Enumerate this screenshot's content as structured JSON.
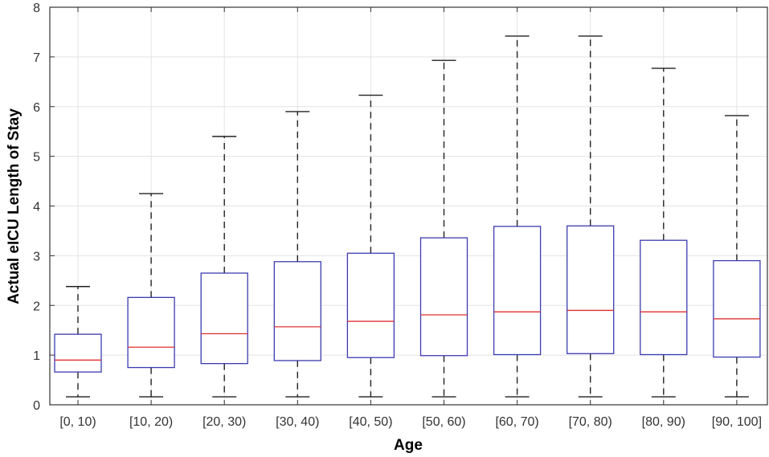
{
  "chart_data": {
    "type": "box",
    "title": "",
    "xlabel": "Age",
    "ylabel": "Actual eICU Length of Stay",
    "ylim": [
      0,
      8
    ],
    "yticks": [
      0,
      1,
      2,
      3,
      4,
      5,
      6,
      7,
      8
    ],
    "grid": true,
    "categories": [
      "[0, 10)",
      "[10, 20)",
      "[20, 30)",
      "[30, 40)",
      "[40, 50)",
      "[50, 60)",
      "[60, 70)",
      "[70, 80)",
      "[80, 90)",
      "[90, 100]"
    ],
    "boxes": [
      {
        "whisker_low": 0.16,
        "q1": 0.66,
        "median": 0.9,
        "q3": 1.42,
        "whisker_high": 2.38
      },
      {
        "whisker_low": 0.16,
        "q1": 0.75,
        "median": 1.16,
        "q3": 2.16,
        "whisker_high": 4.25
      },
      {
        "whisker_low": 0.16,
        "q1": 0.83,
        "median": 1.43,
        "q3": 2.65,
        "whisker_high": 5.4
      },
      {
        "whisker_low": 0.16,
        "q1": 0.89,
        "median": 1.57,
        "q3": 2.88,
        "whisker_high": 5.9
      },
      {
        "whisker_low": 0.16,
        "q1": 0.95,
        "median": 1.68,
        "q3": 3.05,
        "whisker_high": 6.23
      },
      {
        "whisker_low": 0.16,
        "q1": 0.99,
        "median": 1.81,
        "q3": 3.36,
        "whisker_high": 6.93
      },
      {
        "whisker_low": 0.16,
        "q1": 1.01,
        "median": 1.87,
        "q3": 3.59,
        "whisker_high": 7.42
      },
      {
        "whisker_low": 0.16,
        "q1": 1.03,
        "median": 1.9,
        "q3": 3.6,
        "whisker_high": 7.42
      },
      {
        "whisker_low": 0.16,
        "q1": 1.01,
        "median": 1.87,
        "q3": 3.31,
        "whisker_high": 6.77
      },
      {
        "whisker_low": 0.16,
        "q1": 0.96,
        "median": 1.73,
        "q3": 2.9,
        "whisker_high": 5.82
      }
    ],
    "colors": {
      "box": "#3b3bb0",
      "median": "#e03030",
      "whisker": "#222222",
      "grid": "#e3e3e3"
    }
  }
}
